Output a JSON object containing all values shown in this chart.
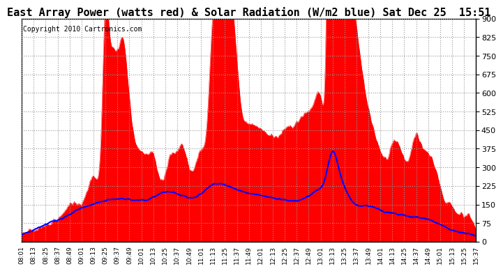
{
  "title": "East Array Power (watts red) & Solar Radiation (W/m2 blue) Sat Dec 25  15:51",
  "copyright": "Copyright 2010 Cartronics.com",
  "ymin": 0,
  "ymax": 900,
  "yticks": [
    0,
    75,
    150,
    225,
    300,
    375,
    450,
    525,
    600,
    675,
    750,
    825,
    900
  ],
  "bg_color": "#ffffff",
  "plot_bg": "#ffffff",
  "red_color": "#ff0000",
  "blue_color": "#0000ff",
  "grid_color": "#999999",
  "title_fontsize": 11,
  "copyright_fontsize": 7,
  "xtick_labels": [
    "08:01",
    "08:13",
    "08:25",
    "08:37",
    "08:49",
    "09:01",
    "09:13",
    "09:25",
    "09:37",
    "09:49",
    "10:01",
    "10:13",
    "10:25",
    "10:37",
    "10:49",
    "11:01",
    "11:13",
    "11:25",
    "11:37",
    "11:49",
    "12:01",
    "12:13",
    "12:25",
    "12:37",
    "12:49",
    "13:01",
    "13:13",
    "13:25",
    "13:37",
    "13:49",
    "14:01",
    "14:13",
    "14:25",
    "14:37",
    "14:49",
    "15:01",
    "15:13",
    "15:25",
    "15:37"
  ]
}
